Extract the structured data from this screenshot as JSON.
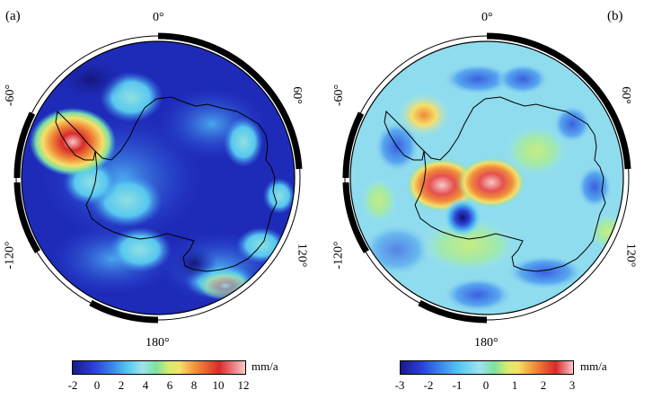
{
  "panels": [
    {
      "label": "(a)",
      "deg_top": "0°",
      "deg_left": "-60°",
      "deg_right": "60°",
      "deg_lower_left": "-120°",
      "deg_lower_right": "120°",
      "deg_bottom": "180°",
      "colorbar": {
        "unit": "mm/a",
        "ticks": [
          "-2",
          "0",
          "2",
          "4",
          "6",
          "8",
          "10",
          "12"
        ]
      }
    },
    {
      "label": "(b)",
      "deg_top": "0°",
      "deg_left": "-60°",
      "deg_right": "60°",
      "deg_lower_left": "-120°",
      "deg_lower_right": "120°",
      "deg_bottom": "180°",
      "colorbar": {
        "unit": "mm/a",
        "ticks": [
          "-3",
          "-2",
          "-1",
          "0",
          "1",
          "2",
          "3"
        ]
      }
    }
  ],
  "colors": {
    "dark_blue": "#1a1a8a",
    "blue": "#2a3fd6",
    "cyan": "#57c7f0",
    "light_cyan": "#9fe3f0",
    "green": "#7ee0a0",
    "yellow": "#f4e06a",
    "orange": "#f08a3a",
    "red": "#d92a2a",
    "pink": "#f7c8c8"
  }
}
